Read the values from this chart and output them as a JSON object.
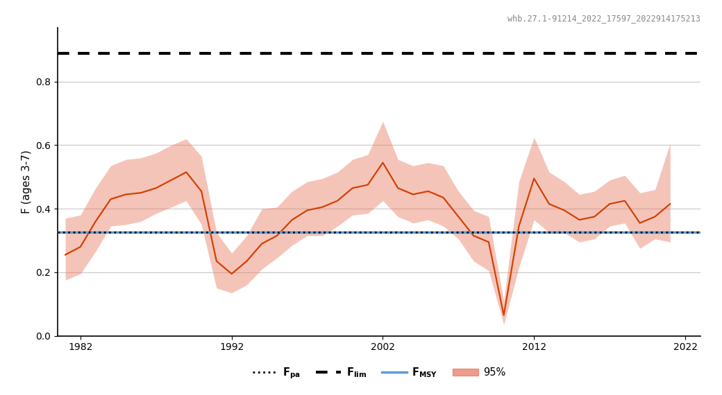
{
  "title_text": "whb.27.1-91214_2022_17597_2022914175213",
  "ylabel": "F (ages 3-7)",
  "F_lim": 0.888,
  "F_pa": 0.326,
  "F_msy": 0.326,
  "F_msy_color": "#5b9bd5",
  "F_pa_color": "#000000",
  "F_lim_color": "#000000",
  "ci_color": "#e8735a",
  "ci_alpha": 0.42,
  "line_color": "#d44000",
  "years": [
    1981,
    1982,
    1983,
    1984,
    1985,
    1986,
    1987,
    1988,
    1989,
    1990,
    1991,
    1992,
    1993,
    1994,
    1995,
    1996,
    1997,
    1998,
    1999,
    2000,
    2001,
    2002,
    2003,
    2004,
    2005,
    2006,
    2007,
    2008,
    2009,
    2010,
    2011,
    2012,
    2013,
    2014,
    2015,
    2016,
    2017,
    2018,
    2019,
    2020,
    2021
  ],
  "f_mean": [
    0.255,
    0.28,
    0.36,
    0.43,
    0.445,
    0.45,
    0.465,
    0.49,
    0.515,
    0.455,
    0.235,
    0.195,
    0.235,
    0.29,
    0.315,
    0.365,
    0.395,
    0.405,
    0.425,
    0.465,
    0.475,
    0.545,
    0.465,
    0.445,
    0.455,
    0.435,
    0.375,
    0.315,
    0.295,
    0.065,
    0.345,
    0.495,
    0.415,
    0.395,
    0.365,
    0.375,
    0.415,
    0.425,
    0.355,
    0.375,
    0.415
  ],
  "f_low": [
    0.175,
    0.195,
    0.265,
    0.345,
    0.35,
    0.36,
    0.385,
    0.405,
    0.425,
    0.35,
    0.15,
    0.135,
    0.16,
    0.21,
    0.245,
    0.285,
    0.315,
    0.315,
    0.345,
    0.38,
    0.385,
    0.425,
    0.375,
    0.355,
    0.365,
    0.345,
    0.305,
    0.235,
    0.205,
    0.035,
    0.215,
    0.365,
    0.325,
    0.325,
    0.295,
    0.305,
    0.345,
    0.355,
    0.275,
    0.305,
    0.295
  ],
  "f_high": [
    0.37,
    0.38,
    0.465,
    0.535,
    0.555,
    0.56,
    0.575,
    0.6,
    0.62,
    0.565,
    0.325,
    0.26,
    0.315,
    0.4,
    0.405,
    0.455,
    0.485,
    0.495,
    0.515,
    0.555,
    0.57,
    0.675,
    0.555,
    0.535,
    0.545,
    0.535,
    0.455,
    0.395,
    0.375,
    0.11,
    0.485,
    0.625,
    0.515,
    0.485,
    0.445,
    0.455,
    0.49,
    0.505,
    0.45,
    0.46,
    0.605
  ],
  "xlim": [
    1980.5,
    2023
  ],
  "ylim": [
    0,
    0.97
  ],
  "xticks": [
    1982,
    1992,
    2002,
    2012,
    2022
  ],
  "yticks": [
    0,
    0.2,
    0.4,
    0.6,
    0.8
  ],
  "bg_color": "#ffffff",
  "grid_color": "#c8c8c8"
}
